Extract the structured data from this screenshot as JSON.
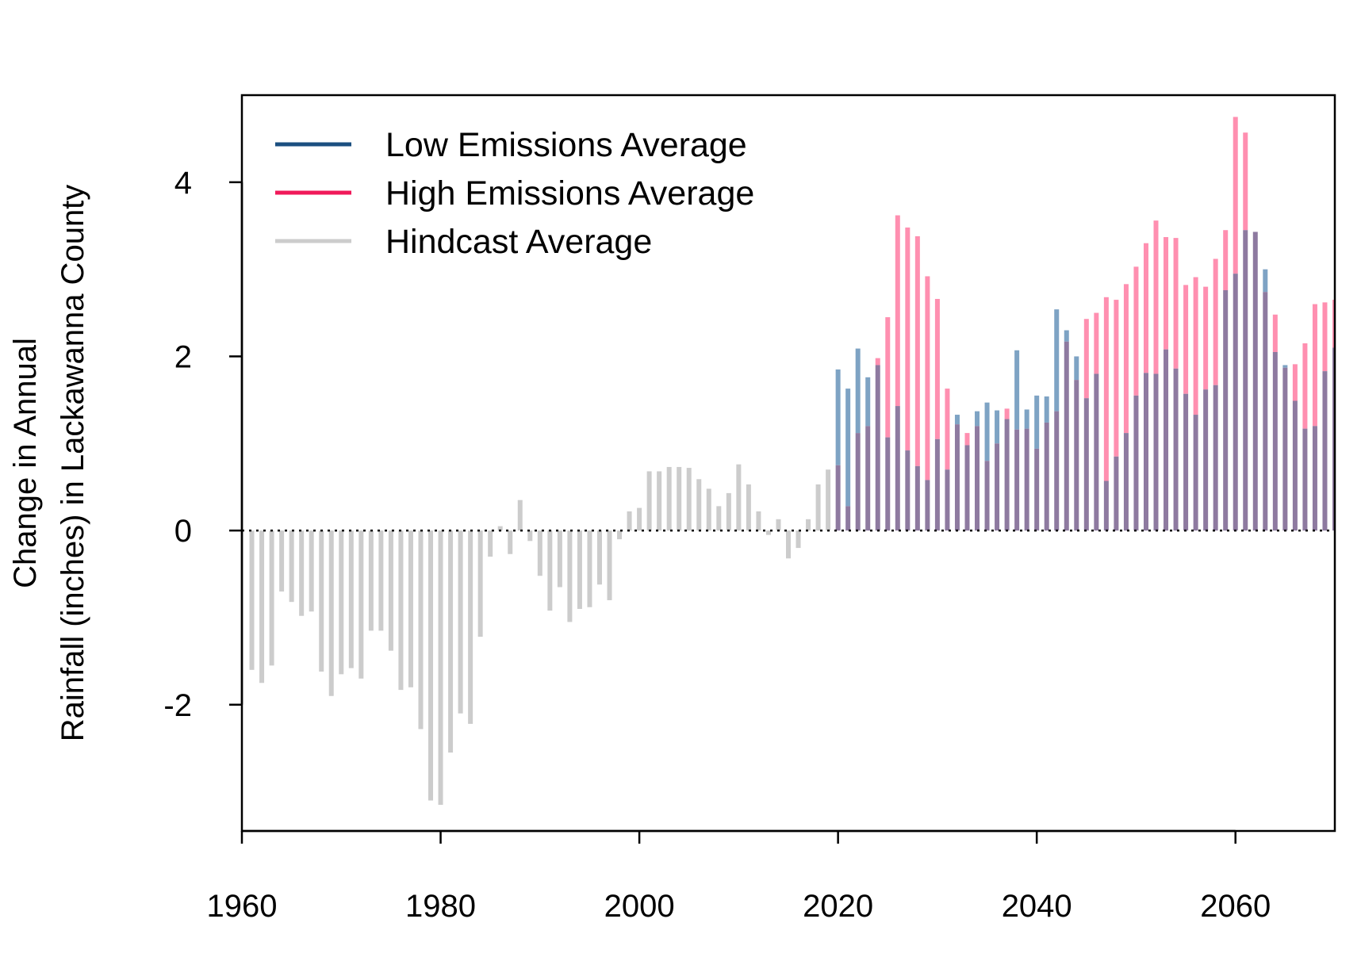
{
  "chart_data": {
    "type": "bar",
    "ylabel_line1": "Change in Annual",
    "ylabel_line2": "Rainfall (inches) in Lackawanna County",
    "xlim": [
      1960,
      2070
    ],
    "ylim": [
      -3.45,
      5.0
    ],
    "x_ticks": [
      "1960",
      "1980",
      "2000",
      "2020",
      "2040",
      "2060"
    ],
    "y_ticks": [
      "4",
      "2",
      "0",
      "-2"
    ],
    "zero_line": "dotted",
    "legend_position": "top-left",
    "colors": {
      "low": "#7ea3c4",
      "high": "#ff8fb0",
      "overlap": "#8e7aa0",
      "hindcast": "#cccccc",
      "legend_low": "#1b4f80",
      "legend_high": "#f0195a",
      "legend_hindcast": "#cccccc"
    },
    "legend": [
      {
        "key": "low",
        "label": "Low Emissions Average"
      },
      {
        "key": "high",
        "label": "High Emissions Average"
      },
      {
        "key": "hindcast",
        "label": "Hindcast Average"
      }
    ],
    "hindcast": {
      "name": "Hindcast Average",
      "years": [
        1961,
        1962,
        1963,
        1964,
        1965,
        1966,
        1967,
        1968,
        1969,
        1970,
        1971,
        1972,
        1973,
        1974,
        1975,
        1976,
        1977,
        1978,
        1979,
        1980,
        1981,
        1982,
        1983,
        1984,
        1985,
        1986,
        1987,
        1988,
        1989,
        1990,
        1991,
        1992,
        1993,
        1994,
        1995,
        1996,
        1997,
        1998,
        1999,
        2000,
        2001,
        2002,
        2003,
        2004,
        2005,
        2006,
        2007,
        2008,
        2009,
        2010,
        2011,
        2012,
        2013,
        2014,
        2015,
        2016,
        2017,
        2018,
        2019
      ],
      "values": [
        -1.6,
        -1.75,
        -1.55,
        -0.7,
        -0.82,
        -0.98,
        -0.93,
        -1.62,
        -1.9,
        -1.65,
        -1.58,
        -1.7,
        -1.15,
        -1.15,
        -1.38,
        -1.83,
        -1.8,
        -2.28,
        -3.1,
        -3.15,
        -2.55,
        -2.1,
        -2.22,
        -1.22,
        -0.3,
        0.05,
        -0.27,
        0.35,
        -0.12,
        -0.52,
        -0.92,
        -0.65,
        -1.05,
        -0.9,
        -0.88,
        -0.62,
        -0.8,
        -0.1,
        0.22,
        0.26,
        0.68,
        0.68,
        0.73,
        0.73,
        0.72,
        0.59,
        0.48,
        0.28,
        0.43,
        0.76,
        0.53,
        0.22,
        -0.05,
        0.13,
        -0.32,
        -0.2,
        0.13,
        0.53,
        0.7
      ]
    },
    "series": [
      {
        "name": "Low Emissions Average",
        "years": [
          2020,
          2021,
          2022,
          2023,
          2024,
          2025,
          2026,
          2027,
          2028,
          2029,
          2030,
          2031,
          2032,
          2033,
          2034,
          2035,
          2036,
          2037,
          2038,
          2039,
          2040,
          2041,
          2042,
          2043,
          2044,
          2045,
          2046,
          2047,
          2048,
          2049,
          2050,
          2051,
          2052,
          2053,
          2054,
          2055,
          2056,
          2057,
          2058,
          2059,
          2060,
          2061,
          2062,
          2063,
          2064,
          2065,
          2066,
          2067,
          2068,
          2069,
          2070
        ],
        "values": [
          1.85,
          1.63,
          2.09,
          1.76,
          1.9,
          1.07,
          1.43,
          0.92,
          0.74,
          0.58,
          1.05,
          0.7,
          1.33,
          0.98,
          1.37,
          1.47,
          1.38,
          1.28,
          2.07,
          1.39,
          1.55,
          1.54,
          2.54,
          2.3,
          2.0,
          1.52,
          1.8,
          0.57,
          0.85,
          1.12,
          1.55,
          1.81,
          1.8,
          2.08,
          1.86,
          1.57,
          1.33,
          1.62,
          1.67,
          2.76,
          2.95,
          3.45,
          3.43,
          3.0,
          2.05,
          1.9,
          1.49,
          1.17,
          1.2,
          1.83,
          2.1
        ]
      },
      {
        "name": "High Emissions Average",
        "years": [
          2020,
          2021,
          2022,
          2023,
          2024,
          2025,
          2026,
          2027,
          2028,
          2029,
          2030,
          2031,
          2032,
          2033,
          2034,
          2035,
          2036,
          2037,
          2038,
          2039,
          2040,
          2041,
          2042,
          2043,
          2044,
          2045,
          2046,
          2047,
          2048,
          2049,
          2050,
          2051,
          2052,
          2053,
          2054,
          2055,
          2056,
          2057,
          2058,
          2059,
          2060,
          2061,
          2062,
          2063,
          2064,
          2065,
          2066,
          2067,
          2068,
          2069,
          2070
        ],
        "values": [
          0.75,
          0.28,
          1.12,
          1.2,
          1.98,
          2.45,
          3.62,
          3.48,
          3.38,
          2.92,
          2.66,
          1.63,
          1.22,
          1.12,
          1.2,
          0.8,
          1.0,
          1.4,
          1.16,
          1.17,
          0.94,
          1.24,
          1.37,
          2.17,
          1.73,
          2.43,
          2.5,
          2.68,
          2.65,
          2.83,
          3.03,
          3.3,
          3.56,
          3.37,
          3.36,
          2.82,
          2.91,
          2.8,
          3.12,
          3.45,
          4.75,
          4.57,
          3.43,
          2.74,
          2.48,
          1.87,
          1.91,
          2.15,
          2.6,
          2.62,
          2.65
        ]
      }
    ]
  }
}
